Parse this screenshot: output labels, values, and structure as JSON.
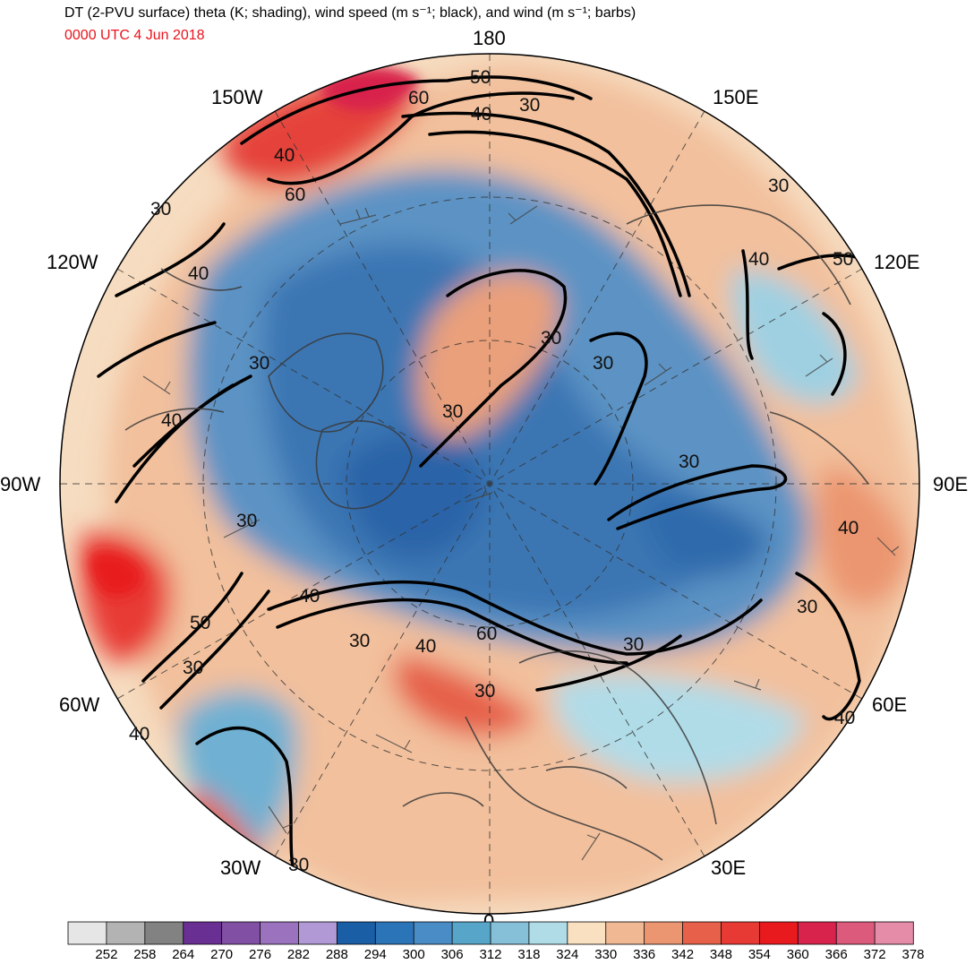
{
  "header": {
    "title": "DT (2-PVU surface) theta (K; shading), wind speed (m s⁻¹; black), and wind (m s⁻¹; barbs)",
    "date": "0000 UTC 4 Jun 2018",
    "date_color": "#e8141c"
  },
  "map": {
    "projection": "north polar stereographic",
    "longitude_labels": {
      "top": "180",
      "upper_left": "150W",
      "upper_right": "150E",
      "mid_upper_left": "120W",
      "mid_upper_right": "120E",
      "left": "90W",
      "right": "90E",
      "lower_left": "60W",
      "lower_right": "60E",
      "bottom_left": "30W",
      "bottom_right": "30E",
      "bottom": "0"
    },
    "wind_speed_contour_labels": [
      "50",
      "60",
      "40",
      "30",
      "40",
      "60",
      "30",
      "30",
      "40",
      "50",
      "40",
      "30",
      "30",
      "40",
      "30",
      "30",
      "30",
      "30",
      "40",
      "30",
      "40",
      "60",
      "30",
      "30",
      "50",
      "30",
      "40",
      "40",
      "30",
      "40",
      "30"
    ]
  },
  "colorbar": {
    "labels": [
      "252",
      "258",
      "264",
      "270",
      "276",
      "282",
      "288",
      "294",
      "300",
      "306",
      "312",
      "318",
      "324",
      "330",
      "336",
      "342",
      "348",
      "354",
      "360",
      "366",
      "372",
      "378"
    ],
    "colors": [
      "#e6e6e6",
      "#b3b3b3",
      "#828282",
      "#6a2f93",
      "#8150a5",
      "#9a72bd",
      "#b099d5",
      "#1a5ea6",
      "#2c74b8",
      "#4a8dc6",
      "#57a5c9",
      "#86bfd8",
      "#b0dce8",
      "#f8e0c0",
      "#f1b894",
      "#eb9670",
      "#e6604a",
      "#e83a34",
      "#e81a1e",
      "#d8244c",
      "#dc5a7c",
      "#e48ca8"
    ]
  }
}
